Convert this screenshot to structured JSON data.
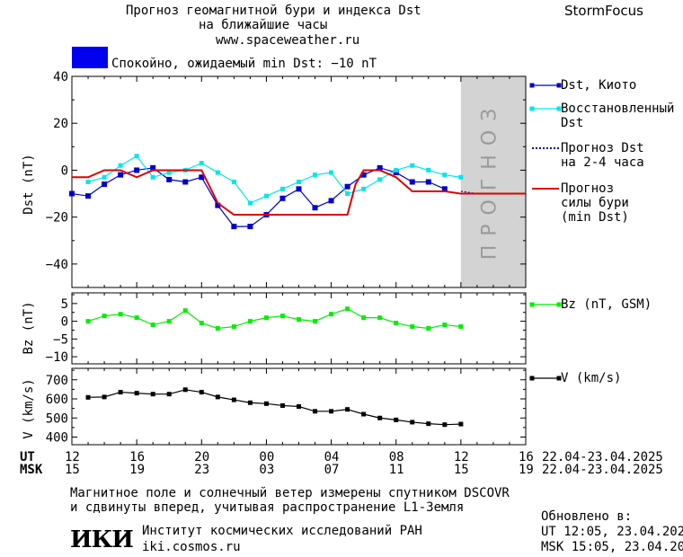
{
  "header": {
    "title_line1": "Прогноз геомагнитной бури и индекса Dst",
    "title_line2": "на ближайшие часы",
    "website": "www.spaceweather.ru",
    "brand": "StormFocus"
  },
  "status": {
    "text": "Спокойно, ожидаемый min Dst: −10 nT",
    "color": "#0000ee"
  },
  "forecast_band_label": "ПРОГНОЗ",
  "legend": {
    "dst": "Dst, Киото",
    "restored_line1": "Восстановленный",
    "restored_line2": "Dst",
    "forecast_line1": "Прогноз Dst",
    "forecast_line2": "на 2-4 часа",
    "storm_line1": "Прогноз",
    "storm_line2": "силы бури",
    "storm_line3": "(min Dst)",
    "bz": "Bz (nT, GSM)",
    "v": "V (km/s)"
  },
  "time_axis": {
    "ut_label": "UT",
    "msk_label": "MSK",
    "ut_ticks": [
      "12",
      "16",
      "20",
      "00",
      "04",
      "08",
      "12",
      "16"
    ],
    "msk_ticks": [
      "15",
      "19",
      "23",
      "03",
      "07",
      "11",
      "15",
      "19"
    ],
    "ut_range": "22.04-23.04.2025",
    "msk_range": "22.04-23.04.2025"
  },
  "footer": {
    "note_line1": "Магнитное поле и солнечный ветер измерены спутником DSCOVR",
    "note_line2": "и сдвинуты вперед, учитывая распространение L1-Земля",
    "logo_text": "ИКИ",
    "institute": "Институт космических исследований РАН",
    "institute_url": "iki.cosmos.ru",
    "updated_label": "Обновлено в:",
    "updated_ut": "UT  12:05, 23.04.2025",
    "updated_msk": "MSK 15:05, 23.04.2025"
  },
  "chart_data": [
    {
      "type": "line",
      "panel": "dst",
      "ylabel": "Dst (nT)",
      "xlim_hours": [
        0,
        28
      ],
      "ylim": [
        -50,
        40
      ],
      "yticks": [
        40,
        20,
        0,
        -20,
        -40
      ],
      "forecast_region_hours": [
        24,
        28
      ],
      "series": [
        {
          "name": "Dst, Киото",
          "color": "#0000cc",
          "x": [
            0,
            1,
            2,
            3,
            4,
            5,
            6,
            7,
            8,
            9,
            10,
            11,
            12,
            13,
            14,
            15,
            16,
            17,
            18,
            19,
            20,
            21,
            22,
            23
          ],
          "y": [
            -10,
            -11,
            -6,
            -2,
            0,
            1,
            -4,
            -5,
            -3,
            -15,
            -24,
            -24,
            -19,
            -12,
            -8,
            -16,
            -13,
            -7,
            -2,
            1,
            -1,
            -5,
            -5,
            -8
          ]
        },
        {
          "name": "Восстановленный Dst",
          "color": "#00e5ee",
          "x": [
            1,
            2,
            3,
            4,
            5,
            6,
            7,
            8,
            9,
            10,
            11,
            12,
            13,
            14,
            15,
            16,
            17,
            18,
            19,
            20,
            21,
            22,
            23,
            24
          ],
          "y": [
            -5,
            -3,
            2,
            6,
            -3,
            -1,
            0,
            3,
            -1,
            -5,
            -14,
            -11,
            -8,
            -5,
            -2,
            -1,
            -10,
            -8,
            -4,
            0,
            2,
            0,
            -2,
            -3
          ]
        },
        {
          "name": "Прогноз Dst на 2-4 часа",
          "color": "#0000aa",
          "x": [
            24,
            25,
            26
          ],
          "y": [
            -9,
            -10,
            -10
          ]
        },
        {
          "name": "Прогноз силы бури (min Dst)",
          "color": "#dd0000",
          "x": [
            0,
            1,
            2,
            3,
            4,
            5,
            6,
            7,
            8,
            9,
            10,
            11,
            12,
            13,
            14,
            15,
            16,
            17,
            17.5,
            18,
            19,
            20,
            21,
            22,
            23,
            24,
            25,
            26,
            27,
            28
          ],
          "y": [
            -3,
            -3,
            0,
            0,
            -3,
            0,
            0,
            0,
            0,
            -14,
            -19,
            -19,
            -19,
            -19,
            -19,
            -19,
            -19,
            -19,
            -6,
            0,
            0,
            -3,
            -9,
            -9,
            -9,
            -10,
            -10,
            -10,
            -10,
            -10
          ]
        }
      ]
    },
    {
      "type": "line",
      "panel": "bz",
      "ylabel": "Bz (nT)",
      "xlim_hours": [
        0,
        28
      ],
      "ylim": [
        -12,
        8
      ],
      "yticks": [
        5,
        0,
        -5,
        -10
      ],
      "series": [
        {
          "name": "Bz (nT, GSM)",
          "color": "#00ee00",
          "x": [
            1,
            2,
            3,
            4,
            5,
            6,
            7,
            8,
            9,
            10,
            11,
            12,
            13,
            14,
            15,
            16,
            17,
            18,
            19,
            20,
            21,
            22,
            23,
            24
          ],
          "y": [
            0,
            1.5,
            2,
            1,
            -1,
            0,
            3,
            -0.5,
            -2,
            -1.5,
            0,
            1,
            1.5,
            0.5,
            0,
            2,
            3.5,
            1,
            1,
            -0.5,
            -1.5,
            -2,
            -1,
            -1.5
          ]
        }
      ]
    },
    {
      "type": "line",
      "panel": "v",
      "ylabel": "V (km/s)",
      "xlim_hours": [
        0,
        28
      ],
      "ylim": [
        360,
        760
      ],
      "yticks": [
        700,
        600,
        500,
        400
      ],
      "series": [
        {
          "name": "V (km/s)",
          "color": "#000000",
          "x": [
            1,
            2,
            3,
            4,
            5,
            6,
            7,
            8,
            9,
            10,
            11,
            12,
            13,
            14,
            15,
            16,
            17,
            18,
            19,
            20,
            21,
            22,
            23,
            24
          ],
          "y": [
            608,
            610,
            635,
            630,
            625,
            625,
            648,
            635,
            610,
            595,
            580,
            575,
            565,
            560,
            535,
            535,
            545,
            520,
            500,
            490,
            478,
            470,
            465,
            468
          ]
        }
      ]
    }
  ]
}
